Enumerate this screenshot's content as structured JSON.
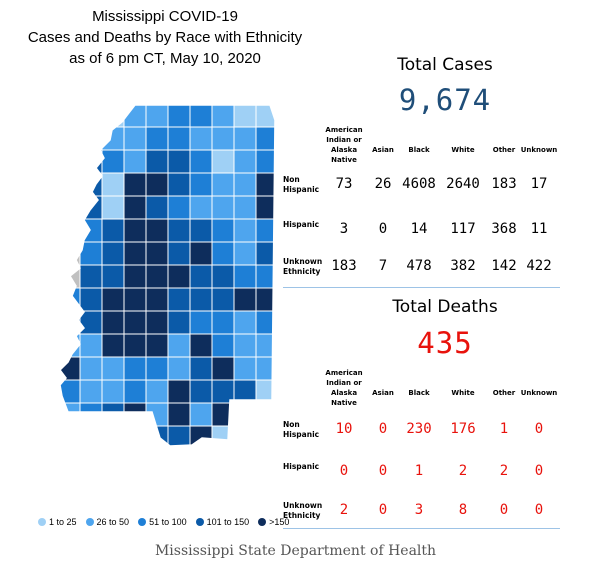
{
  "title": {
    "line1": "Mississippi COVID-19",
    "line2": "Cases and Deaths by Race with Ethnicity",
    "line3": "as of 6 pm CT, May 10, 2020"
  },
  "legend": [
    {
      "label": "1 to 25",
      "color": "#9fd0f5"
    },
    {
      "label": "26 to 50",
      "color": "#4ea5ee"
    },
    {
      "label": "51 to 100",
      "color": "#1e7fd6"
    },
    {
      "label": "101 to 150",
      "color": "#0b5aa8"
    },
    {
      "label": ">150",
      "color": "#0e2d5c"
    }
  ],
  "colors": {
    "cases": "#1f4e79",
    "deaths": "#e8120c",
    "rule": "#9dc3e6",
    "map_none": "#c0c0c0"
  },
  "columns": [
    "American Indian or Alaska Native",
    "Asian",
    "Black",
    "White",
    "Other",
    "Unknown"
  ],
  "row_labels": [
    "Non Hispanic",
    "Hispanic",
    "Unknown Ethnicity"
  ],
  "cases": {
    "title": "Total Cases",
    "total": "9,674",
    "rows": [
      [
        "73",
        "26",
        "4608",
        "2640",
        "183",
        "17"
      ],
      [
        "3",
        "0",
        "14",
        "117",
        "368",
        "11"
      ],
      [
        "183",
        "7",
        "478",
        "382",
        "142",
        "422"
      ]
    ]
  },
  "deaths": {
    "title": "Total Deaths",
    "total": "435",
    "rows": [
      [
        "10",
        "0",
        "230",
        "176",
        "1",
        "0"
      ],
      [
        "0",
        "0",
        "1",
        "2",
        "2",
        "0"
      ],
      [
        "2",
        "0",
        "3",
        "8",
        "0",
        "0"
      ]
    ]
  },
  "footer": "Mississippi State Department of Health"
}
